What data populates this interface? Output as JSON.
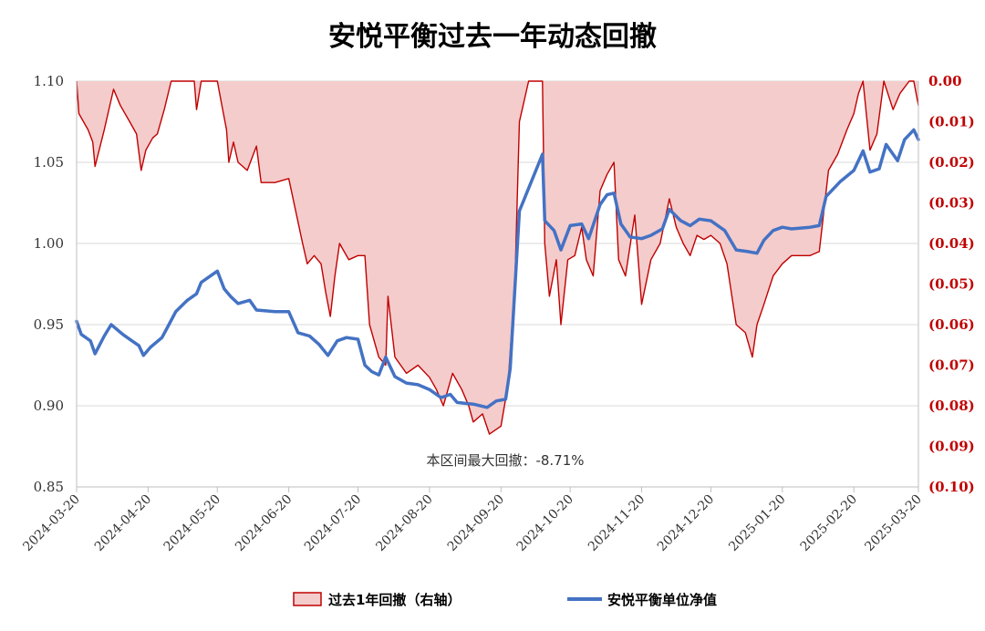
{
  "chart_data": {
    "type": "line",
    "title": "安悦平衡过去一年动态回撤",
    "left_axis": {
      "ylim": [
        0.85,
        1.1
      ],
      "ticks": [
        "1.10",
        "1.05",
        "1.00",
        "0.95",
        "0.90",
        "0.85"
      ],
      "tick_values": [
        1.1,
        1.05,
        1.0,
        0.95,
        0.9,
        0.85
      ]
    },
    "right_axis": {
      "ylim": [
        -0.1,
        0.0
      ],
      "ticks": [
        "0.00",
        "(0.01)",
        "(0.02)",
        "(0.03)",
        "(0.04)",
        "(0.05)",
        "(0.06)",
        "(0.07)",
        "(0.08)",
        "(0.09)",
        "(0.10)"
      ],
      "tick_values": [
        0.0,
        -0.01,
        -0.02,
        -0.03,
        -0.04,
        -0.05,
        -0.06,
        -0.07,
        -0.08,
        -0.09,
        -0.1
      ]
    },
    "x_ticks": [
      "2024-03-20",
      "2024-04-20",
      "2024-05-20",
      "2024-06-20",
      "2024-07-20",
      "2024-08-20",
      "2024-09-20",
      "2024-10-20",
      "2024-11-20",
      "2024-12-20",
      "2025-01-20",
      "2025-02-20",
      "2025-03-20"
    ],
    "x_range": [
      "2024-03-20",
      "2025-03-20"
    ],
    "grid": "horizontal",
    "legend_position": "bottom",
    "annotation": "本区间最大回撤：-8.71%",
    "series": [
      {
        "name": "过去1年回撤（右轴）",
        "type": "area",
        "axis": "right",
        "color": "#c00000",
        "fill": "#f4cccc",
        "points": [
          [
            "2024-03-20",
            0.0
          ],
          [
            "2024-03-21",
            -0.008
          ],
          [
            "2024-03-25",
            -0.012
          ],
          [
            "2024-03-27",
            -0.015
          ],
          [
            "2024-03-28",
            -0.021
          ],
          [
            "2024-04-01",
            -0.012
          ],
          [
            "2024-04-05",
            -0.002
          ],
          [
            "2024-04-08",
            -0.006
          ],
          [
            "2024-04-12",
            -0.01
          ],
          [
            "2024-04-15",
            -0.013
          ],
          [
            "2024-04-17",
            -0.022
          ],
          [
            "2024-04-19",
            -0.017
          ],
          [
            "2024-04-22",
            -0.014
          ],
          [
            "2024-04-24",
            -0.013
          ],
          [
            "2024-04-27",
            -0.007
          ],
          [
            "2024-04-30",
            0.0
          ],
          [
            "2024-05-10",
            0.0
          ],
          [
            "2024-05-11",
            -0.007
          ],
          [
            "2024-05-13",
            0.0
          ],
          [
            "2024-05-20",
            0.0
          ],
          [
            "2024-05-22",
            -0.006
          ],
          [
            "2024-05-24",
            -0.012
          ],
          [
            "2024-05-25",
            -0.02
          ],
          [
            "2024-05-27",
            -0.015
          ],
          [
            "2024-05-29",
            -0.02
          ],
          [
            "2024-06-02",
            -0.022
          ],
          [
            "2024-06-06",
            -0.016
          ],
          [
            "2024-06-08",
            -0.025
          ],
          [
            "2024-06-14",
            -0.025
          ],
          [
            "2024-06-20",
            -0.024
          ],
          [
            "2024-06-23",
            -0.032
          ],
          [
            "2024-06-26",
            -0.04
          ],
          [
            "2024-06-28",
            -0.045
          ],
          [
            "2024-07-01",
            -0.043
          ],
          [
            "2024-07-04",
            -0.045
          ],
          [
            "2024-07-06",
            -0.052
          ],
          [
            "2024-07-08",
            -0.058
          ],
          [
            "2024-07-10",
            -0.048
          ],
          [
            "2024-07-12",
            -0.04
          ],
          [
            "2024-07-16",
            -0.044
          ],
          [
            "2024-07-20",
            -0.043
          ],
          [
            "2024-07-23",
            -0.043
          ],
          [
            "2024-07-25",
            -0.06
          ],
          [
            "2024-07-29",
            -0.068
          ],
          [
            "2024-08-01",
            -0.07
          ],
          [
            "2024-08-02",
            -0.053
          ],
          [
            "2024-08-05",
            -0.068
          ],
          [
            "2024-08-10",
            -0.072
          ],
          [
            "2024-08-15",
            -0.07
          ],
          [
            "2024-08-20",
            -0.073
          ],
          [
            "2024-08-23",
            -0.076
          ],
          [
            "2024-08-26",
            -0.08
          ],
          [
            "2024-08-30",
            -0.072
          ],
          [
            "2024-09-03",
            -0.076
          ],
          [
            "2024-09-06",
            -0.08
          ],
          [
            "2024-09-08",
            -0.084
          ],
          [
            "2024-09-12",
            -0.082
          ],
          [
            "2024-09-15",
            -0.087
          ],
          [
            "2024-09-20",
            -0.085
          ],
          [
            "2024-09-23",
            -0.075
          ],
          [
            "2024-09-26",
            -0.05
          ],
          [
            "2024-09-28",
            -0.01
          ],
          [
            "2024-10-02",
            0.0
          ],
          [
            "2024-10-08",
            0.0
          ],
          [
            "2024-10-09",
            -0.04
          ],
          [
            "2024-10-11",
            -0.053
          ],
          [
            "2024-10-14",
            -0.044
          ],
          [
            "2024-10-16",
            -0.06
          ],
          [
            "2024-10-19",
            -0.044
          ],
          [
            "2024-10-22",
            -0.043
          ],
          [
            "2024-10-25",
            -0.036
          ],
          [
            "2024-10-27",
            -0.044
          ],
          [
            "2024-10-30",
            -0.048
          ],
          [
            "2024-11-02",
            -0.027
          ],
          [
            "2024-11-05",
            -0.023
          ],
          [
            "2024-11-08",
            -0.02
          ],
          [
            "2024-11-10",
            -0.044
          ],
          [
            "2024-11-13",
            -0.048
          ],
          [
            "2024-11-17",
            -0.033
          ],
          [
            "2024-11-20",
            -0.055
          ],
          [
            "2024-11-24",
            -0.044
          ],
          [
            "2024-11-28",
            -0.04
          ],
          [
            "2024-12-02",
            -0.029
          ],
          [
            "2024-12-05",
            -0.036
          ],
          [
            "2024-12-08",
            -0.04
          ],
          [
            "2024-12-11",
            -0.043
          ],
          [
            "2024-12-14",
            -0.038
          ],
          [
            "2024-12-17",
            -0.039
          ],
          [
            "2024-12-20",
            -0.038
          ],
          [
            "2024-12-24",
            -0.04
          ],
          [
            "2024-12-27",
            -0.045
          ],
          [
            "2024-12-31",
            -0.06
          ],
          [
            "2025-01-04",
            -0.062
          ],
          [
            "2025-01-07",
            -0.068
          ],
          [
            "2025-01-09",
            -0.06
          ],
          [
            "2025-01-12",
            -0.055
          ],
          [
            "2025-01-16",
            -0.048
          ],
          [
            "2025-01-20",
            -0.045
          ],
          [
            "2025-01-24",
            -0.043
          ],
          [
            "2025-01-28",
            -0.043
          ],
          [
            "2025-02-01",
            -0.043
          ],
          [
            "2025-02-05",
            -0.042
          ],
          [
            "2025-02-09",
            -0.022
          ],
          [
            "2025-02-13",
            -0.018
          ],
          [
            "2025-02-17",
            -0.012
          ],
          [
            "2025-02-20",
            -0.008
          ],
          [
            "2025-02-22",
            -0.003
          ],
          [
            "2025-02-24",
            0.0
          ],
          [
            "2025-02-27",
            -0.017
          ],
          [
            "2025-03-02",
            -0.013
          ],
          [
            "2025-03-05",
            0.0
          ],
          [
            "2025-03-09",
            -0.007
          ],
          [
            "2025-03-12",
            -0.003
          ],
          [
            "2025-03-16",
            0.0
          ],
          [
            "2025-03-18",
            0.0
          ],
          [
            "2025-03-20",
            -0.006
          ]
        ]
      },
      {
        "name": "安悦平衡单位净值",
        "type": "line",
        "axis": "left",
        "color": "#4472c4",
        "points": [
          [
            "2024-03-20",
            0.952
          ],
          [
            "2024-03-22",
            0.944
          ],
          [
            "2024-03-26",
            0.94
          ],
          [
            "2024-03-28",
            0.932
          ],
          [
            "2024-04-01",
            0.943
          ],
          [
            "2024-04-04",
            0.95
          ],
          [
            "2024-04-09",
            0.944
          ],
          [
            "2024-04-13",
            0.94
          ],
          [
            "2024-04-16",
            0.937
          ],
          [
            "2024-04-18",
            0.931
          ],
          [
            "2024-04-21",
            0.936
          ],
          [
            "2024-04-26",
            0.942
          ],
          [
            "2024-04-29",
            0.95
          ],
          [
            "2024-05-02",
            0.958
          ],
          [
            "2024-05-07",
            0.965
          ],
          [
            "2024-05-11",
            0.969
          ],
          [
            "2024-05-13",
            0.976
          ],
          [
            "2024-05-20",
            0.983
          ],
          [
            "2024-05-23",
            0.972
          ],
          [
            "2024-05-26",
            0.967
          ],
          [
            "2024-05-29",
            0.963
          ],
          [
            "2024-06-03",
            0.965
          ],
          [
            "2024-06-06",
            0.959
          ],
          [
            "2024-06-14",
            0.958
          ],
          [
            "2024-06-20",
            0.958
          ],
          [
            "2024-06-24",
            0.945
          ],
          [
            "2024-06-29",
            0.943
          ],
          [
            "2024-07-03",
            0.938
          ],
          [
            "2024-07-07",
            0.931
          ],
          [
            "2024-07-11",
            0.94
          ],
          [
            "2024-07-15",
            0.942
          ],
          [
            "2024-07-20",
            0.941
          ],
          [
            "2024-07-23",
            0.925
          ],
          [
            "2024-07-26",
            0.921
          ],
          [
            "2024-07-29",
            0.919
          ],
          [
            "2024-08-01",
            0.93
          ],
          [
            "2024-08-05",
            0.918
          ],
          [
            "2024-08-10",
            0.914
          ],
          [
            "2024-08-15",
            0.913
          ],
          [
            "2024-08-20",
            0.91
          ],
          [
            "2024-08-25",
            0.905
          ],
          [
            "2024-08-29",
            0.907
          ],
          [
            "2024-09-01",
            0.902
          ],
          [
            "2024-09-08",
            0.901
          ],
          [
            "2024-09-14",
            0.899
          ],
          [
            "2024-09-18",
            0.903
          ],
          [
            "2024-09-22",
            0.904
          ],
          [
            "2024-09-24",
            0.923
          ],
          [
            "2024-09-28",
            1.02
          ],
          [
            "2024-10-08",
            1.055
          ],
          [
            "2024-10-09",
            1.014
          ],
          [
            "2024-10-13",
            1.008
          ],
          [
            "2024-10-16",
            0.996
          ],
          [
            "2024-10-20",
            1.011
          ],
          [
            "2024-10-25",
            1.012
          ],
          [
            "2024-10-28",
            1.003
          ],
          [
            "2024-11-02",
            1.024
          ],
          [
            "2024-11-05",
            1.03
          ],
          [
            "2024-11-08",
            1.031
          ],
          [
            "2024-11-11",
            1.012
          ],
          [
            "2024-11-15",
            1.004
          ],
          [
            "2024-11-20",
            1.003
          ],
          [
            "2024-11-24",
            1.005
          ],
          [
            "2024-11-29",
            1.009
          ],
          [
            "2024-12-02",
            1.021
          ],
          [
            "2024-12-07",
            1.014
          ],
          [
            "2024-12-11",
            1.011
          ],
          [
            "2024-12-15",
            1.015
          ],
          [
            "2024-12-20",
            1.014
          ],
          [
            "2024-12-26",
            1.008
          ],
          [
            "2024-12-31",
            0.996
          ],
          [
            "2025-01-05",
            0.995
          ],
          [
            "2025-01-09",
            0.994
          ],
          [
            "2025-01-12",
            1.002
          ],
          [
            "2025-01-16",
            1.008
          ],
          [
            "2025-01-20",
            1.01
          ],
          [
            "2025-01-24",
            1.009
          ],
          [
            "2025-02-01",
            1.01
          ],
          [
            "2025-02-05",
            1.011
          ],
          [
            "2025-02-08",
            1.029
          ],
          [
            "2025-02-14",
            1.038
          ],
          [
            "2025-02-20",
            1.045
          ],
          [
            "2025-02-24",
            1.057
          ],
          [
            "2025-02-27",
            1.044
          ],
          [
            "2025-03-03",
            1.046
          ],
          [
            "2025-03-06",
            1.061
          ],
          [
            "2025-03-11",
            1.051
          ],
          [
            "2025-03-14",
            1.064
          ],
          [
            "2025-03-18",
            1.07
          ],
          [
            "2025-03-20",
            1.064
          ]
        ]
      }
    ]
  }
}
